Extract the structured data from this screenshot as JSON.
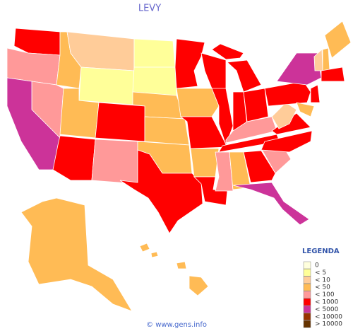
{
  "title": "LEVY",
  "legend": {
    "title": "LEGENDA",
    "items": [
      {
        "label": "0",
        "color": "#ffffdd"
      },
      {
        "label": "< 5",
        "color": "#ffff99"
      },
      {
        "label": "< 10",
        "color": "#ffcc99"
      },
      {
        "label": "< 50",
        "color": "#ffbb55"
      },
      {
        "label": "< 100",
        "color": "#ff9999"
      },
      {
        "label": "< 1000",
        "color": "#ff0000"
      },
      {
        "label": "< 5000",
        "color": "#cc3399"
      },
      {
        "label": "< 10000",
        "color": "#993300"
      },
      {
        "label": "> 10000",
        "color": "#663300"
      }
    ]
  },
  "footer": "© www.gens.info"
}
